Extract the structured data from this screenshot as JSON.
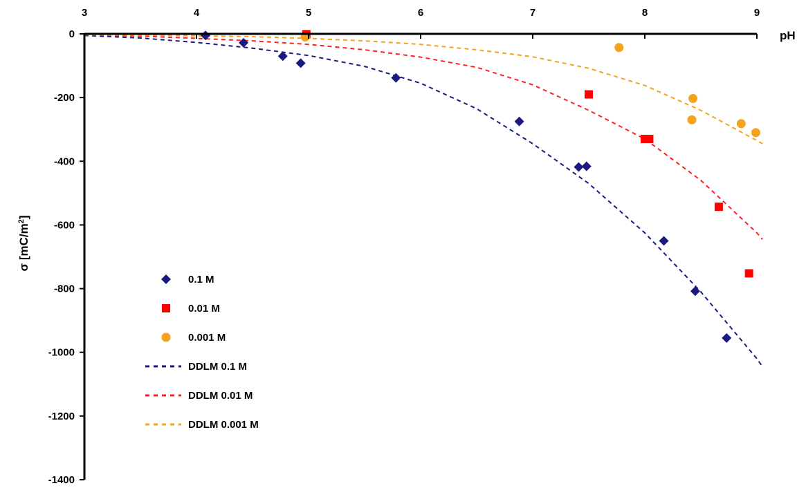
{
  "chart_data": {
    "type": "scatter",
    "title": "",
    "xlabel": "pH",
    "ylabel": "σ [mC/m²]",
    "ylabel_main": "σ [mC/m",
    "ylabel_sup": "2",
    "ylabel_end": "]",
    "xlim": [
      3,
      9
    ],
    "ylim": [
      -1400,
      0
    ],
    "x_ticks": [
      "3",
      "4",
      "5",
      "6",
      "7",
      "8",
      "9"
    ],
    "y_ticks": [
      "0",
      "-200",
      "-400",
      "-600",
      "-800",
      "-1000",
      "-1200",
      "-1400"
    ],
    "x_axis_position": "top",
    "grid": false,
    "legend_position": "bottom-left",
    "series": [
      {
        "name": "0.1 M",
        "kind": "points",
        "marker": "diamond",
        "color": "#1a1a80",
        "x": [
          4.08,
          4.42,
          4.77,
          4.93,
          5.78,
          6.88,
          7.41,
          7.48,
          8.17,
          8.45,
          8.73
        ],
        "y": [
          -5,
          -28,
          -70,
          -92,
          -138,
          -275,
          -418,
          -416,
          -650,
          -808,
          -955
        ]
      },
      {
        "name": "0.01 M",
        "kind": "points",
        "marker": "square",
        "color": "#ff0000",
        "x": [
          4.98,
          7.5,
          8.0,
          8.04,
          8.66,
          8.93
        ],
        "y": [
          -1,
          -190,
          -330,
          -330,
          -543,
          -752
        ]
      },
      {
        "name": "0.001 M",
        "kind": "points",
        "marker": "circle",
        "color": "#f5a21e",
        "x": [
          4.97,
          7.77,
          8.42,
          8.43,
          8.86,
          8.99
        ],
        "y": [
          -10,
          -43,
          -270,
          -203,
          -282,
          -310
        ]
      },
      {
        "name": "DDLM 0.1 M",
        "kind": "dashed-line",
        "color": "#1a1a80",
        "x": [
          3.0,
          3.5,
          4.0,
          4.5,
          5.0,
          5.5,
          6.0,
          6.5,
          7.0,
          7.5,
          8.0,
          8.5,
          9.0,
          9.05
        ],
        "y": [
          -5,
          -13,
          -27,
          -45,
          -68,
          -102,
          -155,
          -235,
          -345,
          -470,
          -625,
          -810,
          -1020,
          -1045
        ]
      },
      {
        "name": "DDLM 0.01 M",
        "kind": "dashed-line",
        "color": "#ff2020",
        "x": [
          3.0,
          3.5,
          4.0,
          4.5,
          5.0,
          5.5,
          6.0,
          6.5,
          7.0,
          7.5,
          8.0,
          8.5,
          9.0,
          9.05
        ],
        "y": [
          -3,
          -7,
          -14,
          -22,
          -33,
          -50,
          -73,
          -105,
          -160,
          -240,
          -330,
          -460,
          -625,
          -645
        ]
      },
      {
        "name": "DDLM 0.001 M",
        "kind": "dashed-line",
        "color": "#f5a21e",
        "x": [
          3.0,
          3.5,
          4.0,
          4.5,
          5.0,
          5.5,
          6.0,
          6.5,
          7.0,
          7.5,
          8.0,
          8.5,
          9.0,
          9.05
        ],
        "y": [
          -2,
          -4,
          -6,
          -9,
          -14,
          -22,
          -33,
          -50,
          -72,
          -108,
          -162,
          -240,
          -335,
          -345
        ]
      }
    ]
  }
}
